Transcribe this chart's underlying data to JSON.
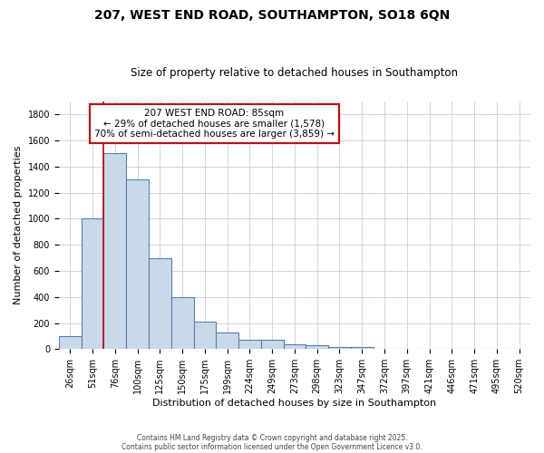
{
  "title": "207, WEST END ROAD, SOUTHAMPTON, SO18 6QN",
  "subtitle": "Size of property relative to detached houses in Southampton",
  "xlabel": "Distribution of detached houses by size in Southampton",
  "ylabel": "Number of detached properties",
  "categories": [
    "26sqm",
    "51sqm",
    "76sqm",
    "100sqm",
    "125sqm",
    "150sqm",
    "175sqm",
    "199sqm",
    "224sqm",
    "249sqm",
    "273sqm",
    "298sqm",
    "323sqm",
    "347sqm",
    "372sqm",
    "397sqm",
    "421sqm",
    "446sqm",
    "471sqm",
    "495sqm",
    "520sqm"
  ],
  "values": [
    100,
    1000,
    1500,
    1300,
    700,
    400,
    210,
    130,
    75,
    75,
    40,
    30,
    15,
    15,
    0,
    0,
    0,
    0,
    0,
    0,
    0
  ],
  "bar_color": "#c8d9ea",
  "bar_edge_color": "#5580b0",
  "red_line_index": 2,
  "red_line_color": "#cc0000",
  "annotation_text": "207 WEST END ROAD: 85sqm\n← 29% of detached houses are smaller (1,578)\n70% of semi-detached houses are larger (3,859) →",
  "annotation_box_color": "#cc0000",
  "ylim": [
    0,
    1900
  ],
  "yticks": [
    0,
    200,
    400,
    600,
    800,
    1000,
    1200,
    1400,
    1600,
    1800
  ],
  "bg_color": "#ffffff",
  "grid_color": "#c8d0dc",
  "footer_line1": "Contains HM Land Registry data © Crown copyright and database right 2025.",
  "footer_line2": "Contains public sector information licensed under the Open Government Licence v3.0.",
  "title_fontsize": 10,
  "subtitle_fontsize": 8.5,
  "annotation_fontsize": 7.5,
  "tick_fontsize": 7,
  "axis_label_fontsize": 8
}
